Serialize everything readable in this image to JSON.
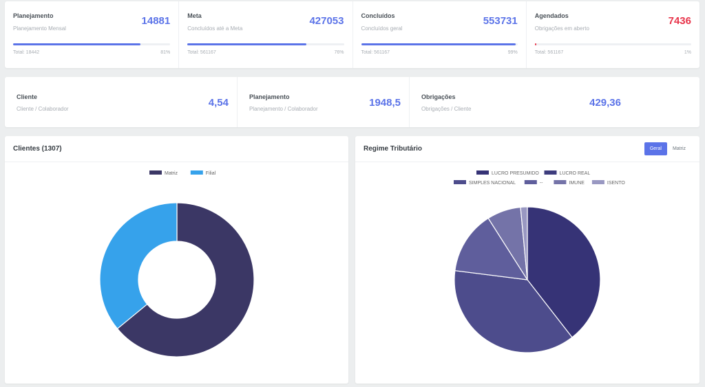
{
  "stats": [
    {
      "title": "Planejamento",
      "subtitle": "Planejamento Mensal",
      "value": "14881",
      "total": "Total: 18442",
      "pct_label": "81%",
      "progress": 0.81,
      "value_color": "#5b73e8",
      "bar_color": "#5b73e8"
    },
    {
      "title": "Meta",
      "subtitle": "Concluídos até a Meta",
      "value": "427053",
      "total": "Total: 561167",
      "pct_label": "76%",
      "progress": 0.76,
      "value_color": "#5b73e8",
      "bar_color": "#5b73e8"
    },
    {
      "title": "Concluídos",
      "subtitle": "Concluídos geral",
      "value": "553731",
      "total": "Total: 561167",
      "pct_label": "99%",
      "progress": 0.99,
      "value_color": "#5b73e8",
      "bar_color": "#5b73e8"
    },
    {
      "title": "Agendados",
      "subtitle": "Obrigações em aberto",
      "value": "7436",
      "total": "Total: 561167",
      "pct_label": "1%",
      "progress": 0.01,
      "value_color": "#e8344a",
      "bar_color": "#e8344a"
    }
  ],
  "ratios": [
    {
      "title": "Cliente",
      "subtitle": "Cliente / Colaborador",
      "value": "4,54"
    },
    {
      "title": "Planejamento",
      "subtitle": "Planejamento / Colaborador",
      "value": "1948,5"
    },
    {
      "title": "Obrigações",
      "subtitle": "Obrigações / Cliente",
      "value": "429,36"
    }
  ],
  "clients_panel": {
    "title": "Clientes (1307)"
  },
  "regime_panel": {
    "title": "Regime Tributário",
    "buttons": {
      "geral": "Geral",
      "matriz": "Matriz"
    },
    "active_button": "geral"
  },
  "chart_data": [
    {
      "type": "pie",
      "variant": "doughnut",
      "categories": [
        "Matriz",
        "Filial"
      ],
      "values": [
        837,
        470
      ],
      "colors": [
        "#3b3765",
        "#36a2eb"
      ],
      "legend_position": "top"
    },
    {
      "type": "pie",
      "categories": [
        "LUCRO PRESUMIDO",
        "LUCRO REAL",
        "SIMPLES NACIONAL",
        "--",
        "IMUNE",
        "ISENTO"
      ],
      "values": [
        39.5,
        0.0,
        37.5,
        14.0,
        7.5,
        1.5
      ],
      "colors": [
        "#363376",
        "#3d3c7d",
        "#4d4c8c",
        "#5f5e9c",
        "#7473a8",
        "#9998c2"
      ],
      "legend_position": "top"
    }
  ]
}
